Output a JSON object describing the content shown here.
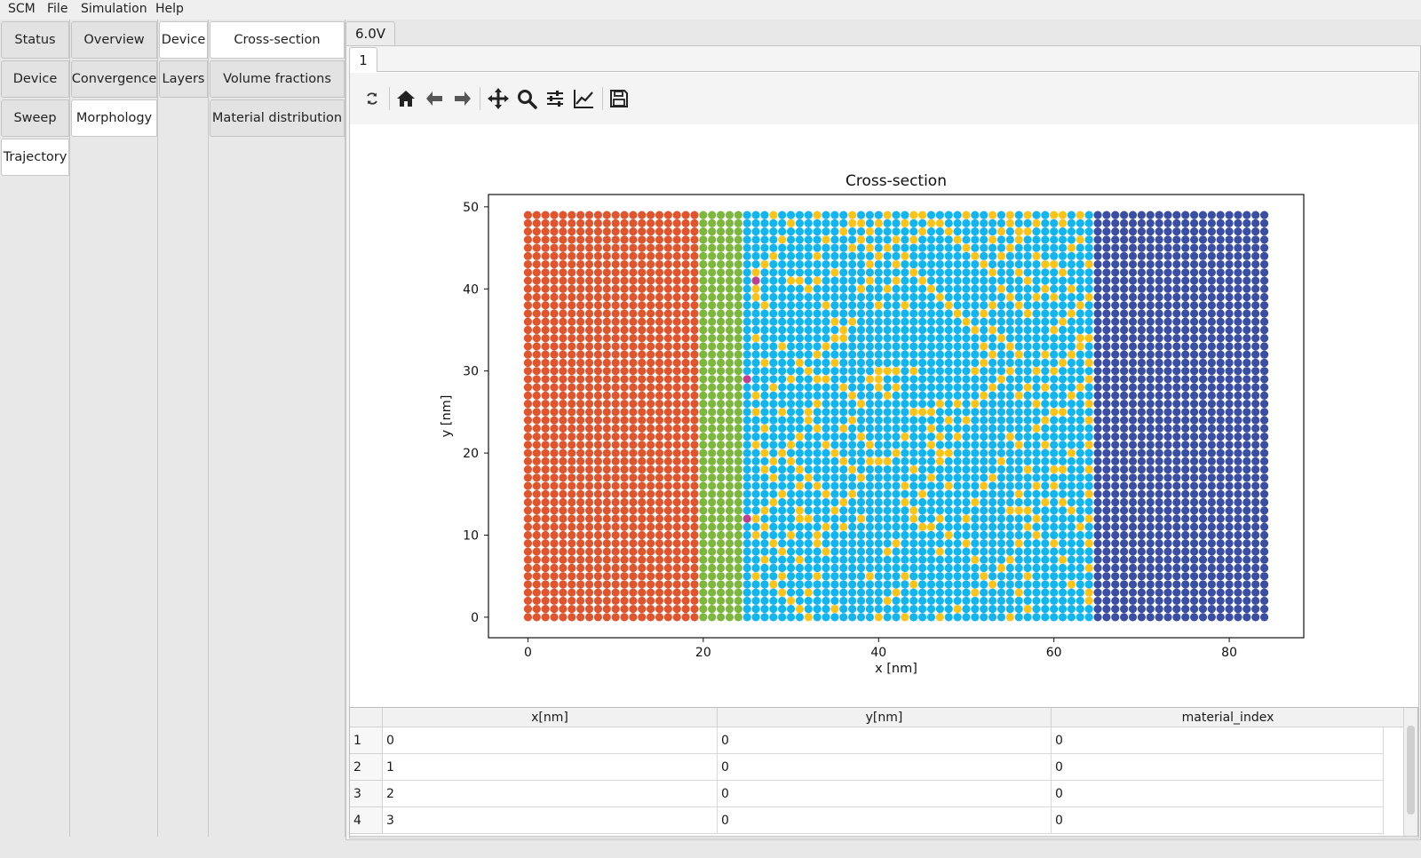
{
  "menu": [
    "SCM",
    "File",
    "Simulation",
    "Help"
  ],
  "col1": [
    "Status",
    "Device",
    "Sweep",
    "Trajectory"
  ],
  "col2": [
    "Overview",
    "Convergence",
    "Morphology"
  ],
  "col3": [
    "Device",
    "Layers"
  ],
  "col4": [
    "Cross-section",
    "Volume fractions",
    "Material distribution"
  ],
  "voltage_tab": "6.0V",
  "run_tab": "1",
  "toolbar_icons": [
    "refresh-icon",
    "home-icon",
    "back-arrow-icon",
    "forward-arrow-icon",
    "pan-icon",
    "zoom-icon",
    "configure-subplots-icon",
    "edit-axis-icon",
    "save-icon"
  ],
  "chart_data": {
    "type": "scatter",
    "title": "Cross-section",
    "xlabel": "x [nm]",
    "ylabel": "y [nm]",
    "xlim": [
      -4.5,
      88.5
    ],
    "ylim": [
      -2.5,
      51.5
    ],
    "xticks": [
      0,
      20,
      40,
      60,
      80
    ],
    "yticks": [
      0,
      10,
      20,
      30,
      40,
      50
    ],
    "grid": false,
    "x_range": [
      0,
      84
    ],
    "y_range": [
      0,
      49
    ],
    "regions": [
      {
        "x_from": 0,
        "x_to": 19,
        "color": "#e0552e"
      },
      {
        "x_from": 20,
        "x_to": 24,
        "color": "#7cb83b"
      },
      {
        "x_from": 25,
        "x_to": 64,
        "color": "#12b5ef"
      },
      {
        "x_from": 65,
        "x_to": 84,
        "color": "#3a4fa3"
      }
    ],
    "minority_color": "#fcc419",
    "minority_points": [
      [
        26,
        42
      ],
      [
        26,
        41
      ],
      [
        26,
        40
      ],
      [
        26,
        39
      ],
      [
        27,
        38
      ],
      [
        26,
        34
      ],
      [
        29,
        33
      ],
      [
        27,
        31
      ],
      [
        28,
        28
      ],
      [
        30,
        29
      ],
      [
        30,
        19
      ],
      [
        31,
        18
      ],
      [
        31,
        16
      ],
      [
        32,
        17
      ],
      [
        33,
        16
      ],
      [
        34,
        15
      ],
      [
        31,
        13
      ],
      [
        31,
        12
      ],
      [
        32,
        12
      ],
      [
        30,
        10
      ],
      [
        29,
        8
      ],
      [
        31,
        7
      ],
      [
        33,
        5
      ],
      [
        29,
        5
      ],
      [
        32,
        3
      ],
      [
        35,
        1
      ],
      [
        34,
        8
      ],
      [
        33,
        9
      ],
      [
        36,
        11
      ],
      [
        38,
        12
      ],
      [
        36,
        28
      ],
      [
        36,
        35
      ],
      [
        36,
        34
      ],
      [
        37,
        36
      ],
      [
        36,
        47
      ],
      [
        37,
        48
      ],
      [
        38,
        48
      ],
      [
        38,
        40
      ],
      [
        39,
        41
      ],
      [
        40,
        38
      ],
      [
        41,
        40
      ],
      [
        42,
        43
      ],
      [
        42,
        41
      ],
      [
        43,
        38
      ],
      [
        41,
        30
      ],
      [
        40,
        29
      ],
      [
        39,
        29
      ],
      [
        40,
        28
      ],
      [
        40,
        30
      ],
      [
        41,
        30
      ],
      [
        42,
        30
      ],
      [
        42,
        28
      ],
      [
        41,
        27
      ],
      [
        44,
        30
      ],
      [
        44,
        25
      ],
      [
        45,
        25
      ],
      [
        46,
        25
      ],
      [
        46,
        23
      ],
      [
        47,
        22
      ],
      [
        46,
        21
      ],
      [
        48,
        24
      ],
      [
        49,
        26
      ],
      [
        47,
        26
      ],
      [
        44,
        18
      ],
      [
        43,
        22
      ],
      [
        42,
        20
      ],
      [
        41,
        19
      ],
      [
        40,
        19
      ],
      [
        39,
        19
      ],
      [
        43,
        14
      ],
      [
        44,
        13
      ],
      [
        44,
        12
      ],
      [
        45,
        11
      ],
      [
        46,
        11
      ],
      [
        47,
        12
      ],
      [
        48,
        16
      ],
      [
        47,
        20
      ],
      [
        43,
        16
      ],
      [
        42,
        9
      ],
      [
        41,
        8
      ],
      [
        43,
        5
      ],
      [
        44,
        4
      ],
      [
        42,
        3
      ],
      [
        41,
        2
      ],
      [
        39,
        5
      ],
      [
        40,
        0
      ],
      [
        43,
        0
      ],
      [
        47,
        0
      ],
      [
        47,
        8
      ],
      [
        48,
        10
      ],
      [
        50,
        9
      ],
      [
        51,
        7
      ],
      [
        52,
        5
      ],
      [
        51,
        3
      ],
      [
        49,
        1
      ],
      [
        50,
        12
      ],
      [
        51,
        14
      ],
      [
        52,
        16
      ],
      [
        53,
        17
      ],
      [
        54,
        19
      ],
      [
        55,
        22
      ],
      [
        56,
        21
      ],
      [
        57,
        18
      ],
      [
        58,
        16
      ],
      [
        59,
        14
      ],
      [
        58,
        12
      ],
      [
        57,
        11
      ],
      [
        56,
        9
      ],
      [
        55,
        7
      ],
      [
        54,
        6
      ],
      [
        53,
        4
      ],
      [
        55,
        13
      ],
      [
        56,
        13
      ],
      [
        57,
        13
      ],
      [
        56,
        15
      ],
      [
        58,
        23
      ],
      [
        59,
        24
      ],
      [
        60,
        25
      ],
      [
        61,
        25
      ],
      [
        62,
        20
      ],
      [
        61,
        18
      ],
      [
        60,
        18
      ],
      [
        60,
        16
      ],
      [
        59,
        21
      ],
      [
        62,
        27
      ],
      [
        63,
        28
      ],
      [
        64,
        29
      ],
      [
        64,
        31
      ],
      [
        63,
        33
      ],
      [
        64,
        34
      ],
      [
        64,
        26
      ],
      [
        64,
        24
      ],
      [
        64,
        21
      ],
      [
        64,
        18
      ],
      [
        64,
        15
      ],
      [
        64,
        12
      ],
      [
        64,
        9
      ],
      [
        64,
        6
      ],
      [
        64,
        3
      ],
      [
        64,
        2
      ],
      [
        61,
        7
      ],
      [
        62,
        4
      ],
      [
        60,
        9
      ],
      [
        63,
        11
      ],
      [
        62,
        13
      ],
      [
        61,
        14
      ],
      [
        58,
        10
      ],
      [
        57,
        5
      ],
      [
        56,
        3
      ],
      [
        57,
        1
      ],
      [
        55,
        0
      ],
      [
        60,
        35
      ],
      [
        61,
        36
      ],
      [
        62,
        37
      ],
      [
        63,
        38
      ],
      [
        62,
        40
      ],
      [
        61,
        42
      ],
      [
        60,
        43
      ],
      [
        62,
        45
      ],
      [
        63,
        46
      ],
      [
        64,
        39
      ],
      [
        64,
        43
      ],
      [
        61,
        48
      ],
      [
        60,
        49
      ],
      [
        58,
        48
      ],
      [
        57,
        47
      ],
      [
        56,
        46
      ],
      [
        55,
        45
      ],
      [
        54,
        44
      ],
      [
        53,
        42
      ],
      [
        54,
        40
      ],
      [
        55,
        39
      ],
      [
        56,
        38
      ],
      [
        57,
        37
      ],
      [
        58,
        39
      ],
      [
        57,
        41
      ],
      [
        56,
        42
      ],
      [
        53,
        38
      ],
      [
        52,
        37
      ],
      [
        53,
        35
      ],
      [
        54,
        34
      ],
      [
        55,
        33
      ],
      [
        56,
        32
      ],
      [
        55,
        30
      ],
      [
        54,
        29
      ],
      [
        53,
        28
      ],
      [
        52,
        27
      ],
      [
        51,
        26
      ],
      [
        50,
        24
      ],
      [
        49,
        22
      ],
      [
        48,
        20
      ],
      [
        47,
        19
      ],
      [
        46,
        17
      ],
      [
        45,
        15
      ],
      [
        51,
        30
      ],
      [
        52,
        31
      ],
      [
        53,
        32
      ],
      [
        52,
        33
      ],
      [
        51,
        35
      ],
      [
        50,
        36
      ],
      [
        49,
        37
      ],
      [
        48,
        38
      ],
      [
        47,
        39
      ],
      [
        46,
        40
      ],
      [
        45,
        41
      ],
      [
        44,
        42
      ],
      [
        43,
        44
      ],
      [
        44,
        46
      ],
      [
        45,
        47
      ],
      [
        46,
        48
      ],
      [
        47,
        48
      ],
      [
        48,
        47
      ],
      [
        49,
        46
      ],
      [
        50,
        45
      ],
      [
        51,
        44
      ],
      [
        52,
        43
      ],
      [
        53,
        46
      ],
      [
        54,
        47
      ],
      [
        55,
        48
      ],
      [
        56,
        47
      ],
      [
        50,
        49
      ],
      [
        55,
        49
      ],
      [
        59,
        43
      ],
      [
        58,
        44
      ],
      [
        59,
        40
      ],
      [
        60,
        39
      ],
      [
        59,
        32
      ],
      [
        58,
        30
      ],
      [
        57,
        28
      ],
      [
        56,
        27
      ],
      [
        58,
        26
      ],
      [
        59,
        28
      ],
      [
        60,
        30
      ],
      [
        61,
        31
      ],
      [
        62,
        32
      ],
      [
        63,
        34
      ],
      [
        30,
        41
      ],
      [
        31,
        41
      ],
      [
        32,
        40
      ],
      [
        33,
        41
      ],
      [
        33,
        44
      ],
      [
        34,
        46
      ],
      [
        35,
        42
      ],
      [
        34,
        38
      ],
      [
        35,
        36
      ],
      [
        35,
        31
      ],
      [
        34,
        29
      ],
      [
        33,
        26
      ],
      [
        32,
        25
      ],
      [
        33,
        23
      ],
      [
        34,
        21
      ],
      [
        35,
        20
      ],
      [
        36,
        19
      ],
      [
        37,
        18
      ],
      [
        38,
        17
      ],
      [
        37,
        15
      ],
      [
        36,
        14
      ],
      [
        35,
        13
      ],
      [
        34,
        11
      ],
      [
        33,
        10
      ],
      [
        32,
        24
      ],
      [
        31,
        22
      ],
      [
        30,
        21
      ],
      [
        29,
        20
      ],
      [
        28,
        19
      ],
      [
        27,
        18
      ],
      [
        28,
        17
      ],
      [
        29,
        15
      ],
      [
        28,
        14
      ],
      [
        27,
        13
      ],
      [
        26,
        12
      ],
      [
        27,
        11
      ],
      [
        26,
        10
      ],
      [
        28,
        9
      ],
      [
        27,
        7
      ],
      [
        26,
        5
      ],
      [
        28,
        4
      ],
      [
        29,
        3
      ],
      [
        30,
        2
      ],
      [
        31,
        1
      ],
      [
        32,
        0
      ],
      [
        33,
        29
      ],
      [
        32,
        30
      ],
      [
        31,
        31
      ],
      [
        33,
        32
      ],
      [
        34,
        33
      ],
      [
        35,
        34
      ],
      [
        36,
        23
      ],
      [
        37,
        24
      ],
      [
        38,
        22
      ],
      [
        39,
        21
      ],
      [
        38,
        26
      ],
      [
        37,
        27
      ],
      [
        39,
        43
      ],
      [
        40,
        44
      ],
      [
        41,
        45
      ],
      [
        42,
        46
      ],
      [
        39,
        47
      ],
      [
        40,
        48
      ],
      [
        41,
        49
      ],
      [
        43,
        48
      ],
      [
        44,
        49
      ],
      [
        37,
        45
      ],
      [
        38,
        46
      ],
      [
        39,
        45
      ],
      [
        30,
        48
      ],
      [
        29,
        46
      ],
      [
        28,
        44
      ],
      [
        27,
        43
      ],
      [
        28,
        49
      ],
      [
        33,
        49
      ],
      [
        37,
        49
      ],
      [
        45,
        49
      ],
      [
        53,
        49
      ],
      [
        57,
        49
      ],
      [
        61,
        49
      ],
      [
        63,
        49
      ],
      [
        26,
        25
      ],
      [
        27,
        23
      ],
      [
        26,
        21
      ],
      [
        27,
        20
      ],
      [
        26,
        27
      ],
      [
        29,
        25
      ]
    ],
    "accent_color": "#c04090",
    "accent_points": [
      [
        25,
        29
      ],
      [
        25,
        12
      ],
      [
        26,
        41
      ]
    ]
  },
  "table": {
    "columns": [
      "x[nm]",
      "y[nm]",
      "material_index"
    ],
    "rows": [
      {
        "id": "1",
        "x": "0",
        "y": "0",
        "m": "0"
      },
      {
        "id": "2",
        "x": "1",
        "y": "0",
        "m": "0"
      },
      {
        "id": "3",
        "x": "2",
        "y": "0",
        "m": "0"
      },
      {
        "id": "4",
        "x": "3",
        "y": "0",
        "m": "0"
      }
    ]
  }
}
